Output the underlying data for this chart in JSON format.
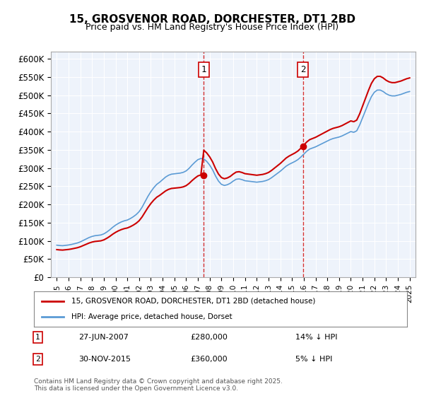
{
  "title": "15, GROSVENOR ROAD, DORCHESTER, DT1 2BD",
  "subtitle": "Price paid vs. HM Land Registry's House Price Index (HPI)",
  "ylabel_ticks": [
    0,
    50000,
    100000,
    150000,
    200000,
    250000,
    300000,
    350000,
    400000,
    450000,
    500000,
    550000,
    600000
  ],
  "ylabel_labels": [
    "£0",
    "£50K",
    "£100K",
    "£150K",
    "£200K",
    "£250K",
    "£300K",
    "£350K",
    "£400K",
    "£450K",
    "£500K",
    "£550K",
    "£600K"
  ],
  "xmin": 1994.5,
  "xmax": 2025.5,
  "ymin": 0,
  "ymax": 620000,
  "background_color": "#ffffff",
  "plot_bg_color": "#eef3fb",
  "grid_color": "#ffffff",
  "blue_color": "#5b9bd5",
  "red_color": "#cc0000",
  "vline1_x": 2007.49,
  "vline2_x": 2015.92,
  "marker1_label": "1",
  "marker2_label": "2",
  "annotation1_date": "27-JUN-2007",
  "annotation1_price": "£280,000",
  "annotation1_hpi": "14% ↓ HPI",
  "annotation2_date": "30-NOV-2015",
  "annotation2_price": "£360,000",
  "annotation2_hpi": "5% ↓ HPI",
  "legend1": "15, GROSVENOR ROAD, DORCHESTER, DT1 2BD (detached house)",
  "legend2": "HPI: Average price, detached house, Dorset",
  "footer": "Contains HM Land Registry data © Crown copyright and database right 2025.\nThis data is licensed under the Open Government Licence v3.0.",
  "hpi_data": {
    "years": [
      1995.0,
      1995.25,
      1995.5,
      1995.75,
      1996.0,
      1996.25,
      1996.5,
      1996.75,
      1997.0,
      1997.25,
      1997.5,
      1997.75,
      1998.0,
      1998.25,
      1998.5,
      1998.75,
      1999.0,
      1999.25,
      1999.5,
      1999.75,
      2000.0,
      2000.25,
      2000.5,
      2000.75,
      2001.0,
      2001.25,
      2001.5,
      2001.75,
      2002.0,
      2002.25,
      2002.5,
      2002.75,
      2003.0,
      2003.25,
      2003.5,
      2003.75,
      2004.0,
      2004.25,
      2004.5,
      2004.75,
      2005.0,
      2005.25,
      2005.5,
      2005.75,
      2006.0,
      2006.25,
      2006.5,
      2006.75,
      2007.0,
      2007.25,
      2007.5,
      2007.75,
      2008.0,
      2008.25,
      2008.5,
      2008.75,
      2009.0,
      2009.25,
      2009.5,
      2009.75,
      2010.0,
      2010.25,
      2010.5,
      2010.75,
      2011.0,
      2011.25,
      2011.5,
      2011.75,
      2012.0,
      2012.25,
      2012.5,
      2012.75,
      2013.0,
      2013.25,
      2013.5,
      2013.75,
      2014.0,
      2014.25,
      2014.5,
      2014.75,
      2015.0,
      2015.25,
      2015.5,
      2015.75,
      2016.0,
      2016.25,
      2016.5,
      2016.75,
      2017.0,
      2017.25,
      2017.5,
      2017.75,
      2018.0,
      2018.25,
      2018.5,
      2018.75,
      2019.0,
      2019.25,
      2019.5,
      2019.75,
      2020.0,
      2020.25,
      2020.5,
      2020.75,
      2021.0,
      2021.25,
      2021.5,
      2021.75,
      2022.0,
      2022.25,
      2022.5,
      2022.75,
      2023.0,
      2023.25,
      2023.5,
      2023.75,
      2024.0,
      2024.25,
      2024.5,
      2024.75,
      2025.0
    ],
    "values": [
      88000,
      87000,
      86500,
      87500,
      88500,
      90000,
      92000,
      94000,
      97000,
      101000,
      105000,
      109000,
      112000,
      114000,
      115000,
      116000,
      119000,
      124000,
      130000,
      137000,
      143000,
      148000,
      152000,
      155000,
      157000,
      161000,
      166000,
      172000,
      180000,
      192000,
      207000,
      222000,
      235000,
      246000,
      255000,
      261000,
      268000,
      275000,
      280000,
      283000,
      284000,
      285000,
      286000,
      288000,
      292000,
      299000,
      308000,
      316000,
      323000,
      326000,
      325000,
      318000,
      308000,
      295000,
      278000,
      264000,
      255000,
      252000,
      254000,
      258000,
      264000,
      269000,
      270000,
      268000,
      265000,
      264000,
      263000,
      262000,
      261000,
      262000,
      263000,
      265000,
      268000,
      273000,
      279000,
      285000,
      291000,
      298000,
      305000,
      310000,
      314000,
      318000,
      323000,
      330000,
      338000,
      346000,
      352000,
      355000,
      358000,
      362000,
      366000,
      370000,
      374000,
      378000,
      381000,
      383000,
      385000,
      388000,
      392000,
      396000,
      400000,
      398000,
      402000,
      418000,
      438000,
      458000,
      478000,
      496000,
      508000,
      514000,
      514000,
      510000,
      504000,
      500000,
      498000,
      498000,
      500000,
      502000,
      505000,
      508000,
      510000
    ],
    "sale_years": [
      2007.49,
      2015.92
    ],
    "sale_prices": [
      280000,
      360000
    ]
  }
}
